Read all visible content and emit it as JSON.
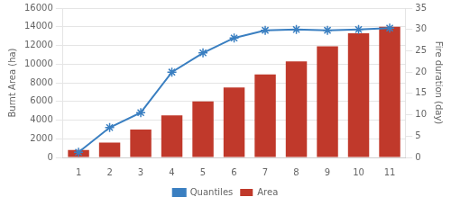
{
  "chart_data": {
    "type": "bar",
    "categories": [
      1,
      2,
      3,
      4,
      5,
      6,
      7,
      8,
      9,
      10,
      11
    ],
    "series": [
      {
        "name": "Area",
        "type": "bar",
        "color": "#c0392b",
        "values": [
          800,
          1600,
          3000,
          4500,
          6000,
          7500,
          8900,
          10300,
          11900,
          13300,
          14000
        ]
      },
      {
        "name": "Quantiles",
        "type": "line",
        "color": "#3a7fc1",
        "marker": "star",
        "axis": "y2",
        "values": [
          1.2,
          7.0,
          10.5,
          20.0,
          24.5,
          28.0,
          29.8,
          30.0,
          29.8,
          30.0,
          30.3
        ]
      }
    ],
    "ylabel": "Burnt Area (ha)",
    "y2label": "Fire duration (day)",
    "ylim": [
      0,
      16000
    ],
    "yticks": [
      0,
      2000,
      4000,
      6000,
      8000,
      10000,
      12000,
      14000,
      16000
    ],
    "y2lim": [
      0,
      35
    ],
    "y2ticks": [
      0,
      5,
      10,
      15,
      20,
      25,
      30,
      35
    ],
    "grid": true,
    "legend": "bottom"
  }
}
